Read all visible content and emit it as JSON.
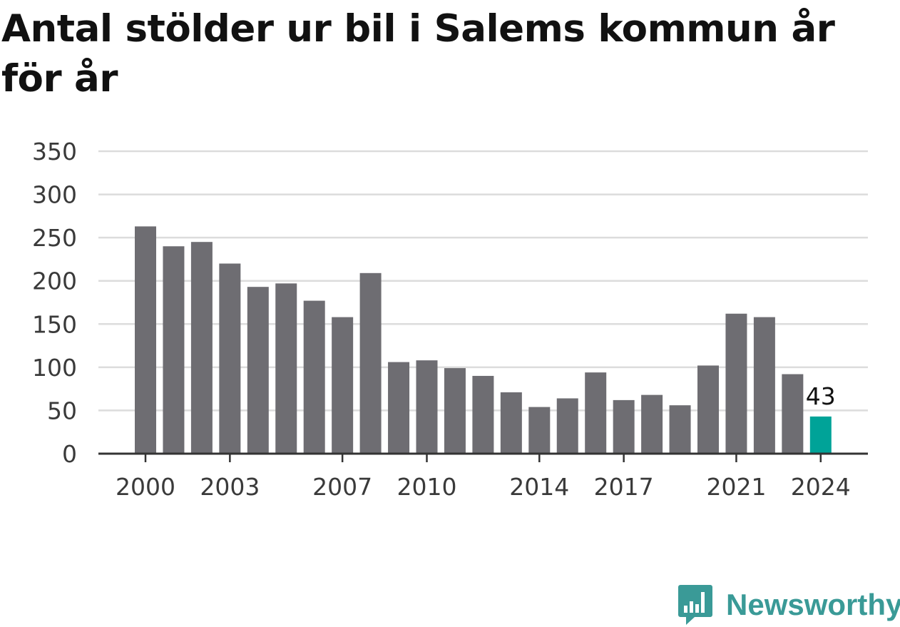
{
  "title": "Antal stölder ur bil i Salems kommun år för år",
  "brand": {
    "name": "Newsworthy",
    "color": "#3a9a97",
    "icon": "bar-chart-speech-bubble-icon"
  },
  "colors": {
    "bar": "#6e6d72",
    "highlight": "#00a398",
    "grid": "#dcdcdc",
    "axis": "#333333"
  },
  "chart_data": {
    "type": "bar",
    "title": "Antal stölder ur bil i Salems kommun år för år",
    "xlabel": "",
    "ylabel": "",
    "categories": [
      "2000",
      "2001",
      "2002",
      "2003",
      "2004",
      "2005",
      "2006",
      "2007",
      "2008",
      "2009",
      "2010",
      "2011",
      "2012",
      "2013",
      "2014",
      "2015",
      "2016",
      "2017",
      "2018",
      "2019",
      "2020",
      "2021",
      "2022",
      "2023",
      "2024"
    ],
    "values": [
      263,
      240,
      245,
      220,
      193,
      197,
      177,
      158,
      209,
      106,
      108,
      99,
      90,
      71,
      54,
      64,
      94,
      62,
      68,
      56,
      102,
      162,
      158,
      92,
      43
    ],
    "highlight_index": 24,
    "data_labels": [
      {
        "category": "2024",
        "text": "43"
      }
    ],
    "x_tick_labels": [
      "2000",
      "2003",
      "2007",
      "2010",
      "2014",
      "2017",
      "2021",
      "2024"
    ],
    "y_ticks": [
      0,
      50,
      100,
      150,
      200,
      250,
      300,
      350
    ],
    "ylim": [
      0,
      350
    ],
    "grid": true,
    "legend": "none"
  }
}
